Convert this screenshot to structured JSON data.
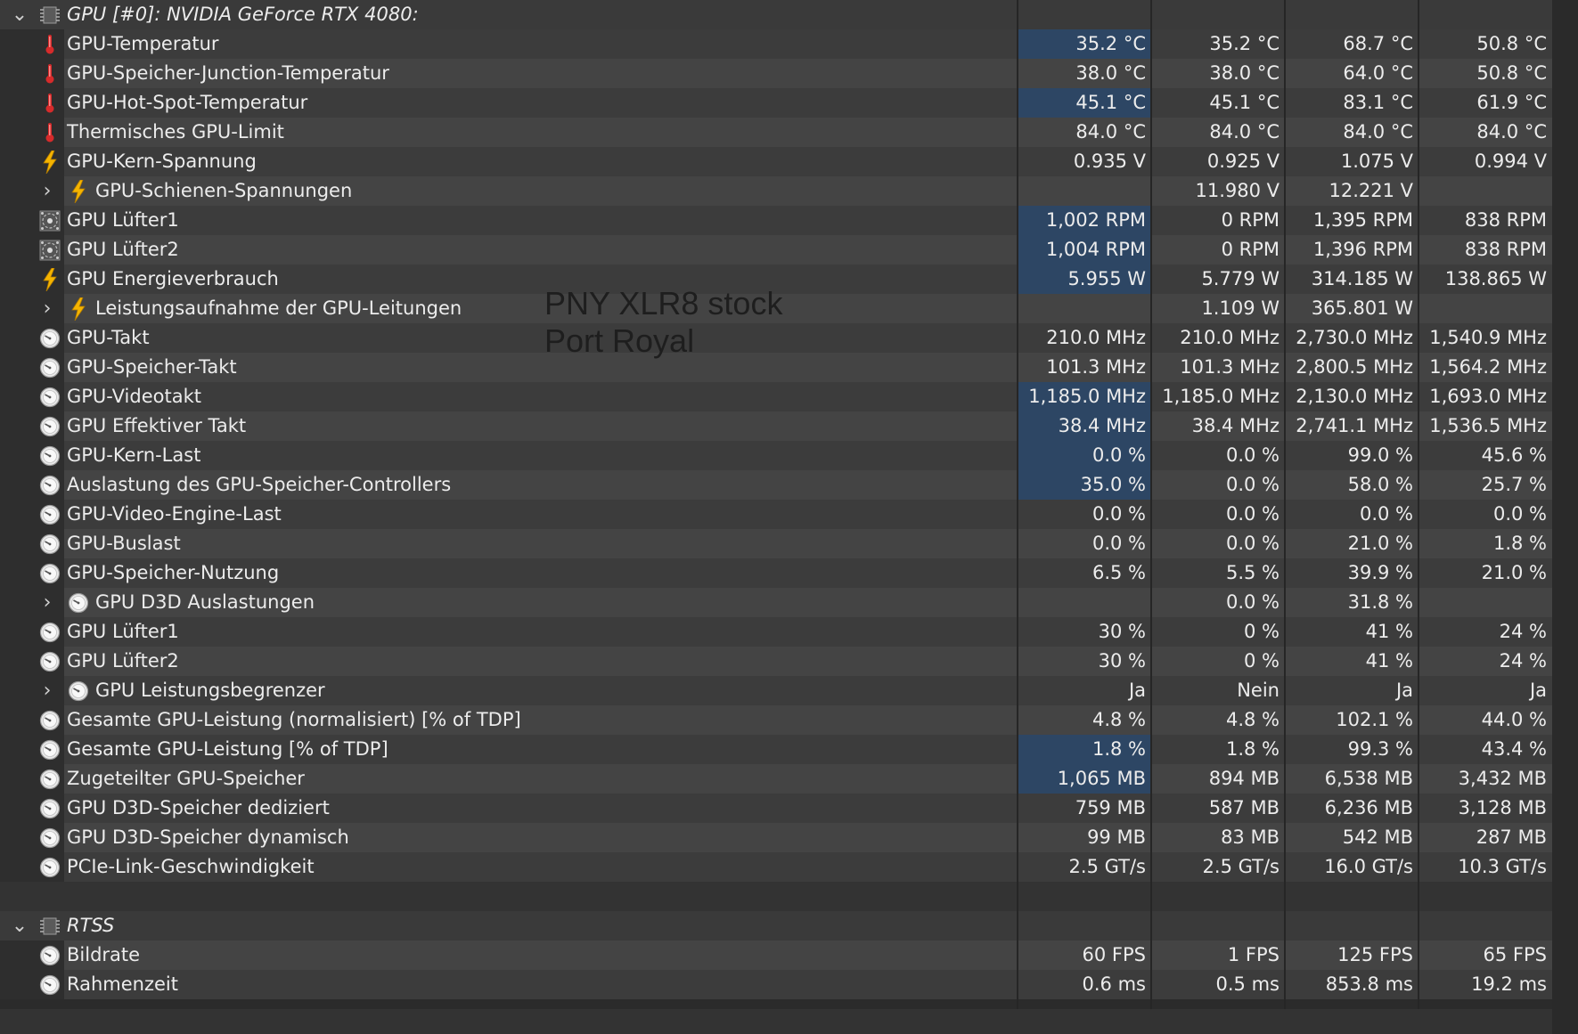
{
  "groups": [
    {
      "title": "GPU [#0]: NVIDIA GeForce RTX 4080:",
      "rows": [
        {
          "label": "GPU-Temperatur",
          "icon": "thermometer-icon",
          "values": [
            "35.2 °C",
            "35.2 °C",
            "68.7 °C",
            "50.8 °C"
          ],
          "highlight": true
        },
        {
          "label": "GPU-Speicher-Junction-Temperatur",
          "icon": "thermometer-icon",
          "values": [
            "38.0 °C",
            "38.0 °C",
            "64.0 °C",
            "50.8 °C"
          ],
          "highlight": false
        },
        {
          "label": "GPU-Hot-Spot-Temperatur",
          "icon": "thermometer-icon",
          "values": [
            "45.1 °C",
            "45.1 °C",
            "83.1 °C",
            "61.9 °C"
          ],
          "highlight": true
        },
        {
          "label": "Thermisches GPU-Limit",
          "icon": "thermometer-icon",
          "values": [
            "84.0 °C",
            "84.0 °C",
            "84.0 °C",
            "84.0 °C"
          ],
          "highlight": false
        },
        {
          "label": "GPU-Kern-Spannung",
          "icon": "lightning-icon",
          "values": [
            "0.935 V",
            "0.925 V",
            "1.075 V",
            "0.994 V"
          ],
          "highlight": false
        },
        {
          "label": "GPU-Schienen-Spannungen",
          "icon": "lightning-icon",
          "expandable": true,
          "values": [
            "",
            "11.980 V",
            "12.221 V",
            ""
          ],
          "highlight": false
        },
        {
          "label": "GPU Lüfter1",
          "icon": "fan-icon",
          "values": [
            "1,002 RPM",
            "0 RPM",
            "1,395 RPM",
            "838 RPM"
          ],
          "highlight": true
        },
        {
          "label": "GPU Lüfter2",
          "icon": "fan-icon",
          "values": [
            "1,004 RPM",
            "0 RPM",
            "1,396 RPM",
            "838 RPM"
          ],
          "highlight": true
        },
        {
          "label": "GPU Energieverbrauch",
          "icon": "lightning-icon",
          "values": [
            "5.955 W",
            "5.779 W",
            "314.185 W",
            "138.865 W"
          ],
          "highlight": true
        },
        {
          "label": "Leistungsaufnahme der GPU-Leitungen",
          "icon": "lightning-icon",
          "expandable": true,
          "values": [
            "",
            "1.109 W",
            "365.801 W",
            ""
          ],
          "highlight": false
        },
        {
          "label": "GPU-Takt",
          "icon": "clock-icon",
          "values": [
            "210.0 MHz",
            "210.0 MHz",
            "2,730.0 MHz",
            "1,540.9 MHz"
          ],
          "highlight": false
        },
        {
          "label": "GPU-Speicher-Takt",
          "icon": "clock-icon",
          "values": [
            "101.3 MHz",
            "101.3 MHz",
            "2,800.5 MHz",
            "1,564.2 MHz"
          ],
          "highlight": false
        },
        {
          "label": "GPU-Videotakt",
          "icon": "clock-icon",
          "values": [
            "1,185.0 MHz",
            "1,185.0 MHz",
            "2,130.0 MHz",
            "1,693.0 MHz"
          ],
          "highlight": true
        },
        {
          "label": "GPU Effektiver Takt",
          "icon": "clock-icon",
          "values": [
            "38.4 MHz",
            "38.4 MHz",
            "2,741.1 MHz",
            "1,536.5 MHz"
          ],
          "highlight": true
        },
        {
          "label": "GPU-Kern-Last",
          "icon": "clock-icon",
          "values": [
            "0.0 %",
            "0.0 %",
            "99.0 %",
            "45.6 %"
          ],
          "highlight": true
        },
        {
          "label": "Auslastung des GPU-Speicher-Controllers",
          "icon": "clock-icon",
          "values": [
            "35.0 %",
            "0.0 %",
            "58.0 %",
            "25.7 %"
          ],
          "highlight": true
        },
        {
          "label": "GPU-Video-Engine-Last",
          "icon": "clock-icon",
          "values": [
            "0.0 %",
            "0.0 %",
            "0.0 %",
            "0.0 %"
          ],
          "highlight": false
        },
        {
          "label": "GPU-Buslast",
          "icon": "clock-icon",
          "values": [
            "0.0 %",
            "0.0 %",
            "21.0 %",
            "1.8 %"
          ],
          "highlight": false
        },
        {
          "label": "GPU-Speicher-Nutzung",
          "icon": "clock-icon",
          "values": [
            "6.5 %",
            "5.5 %",
            "39.9 %",
            "21.0 %"
          ],
          "highlight": false
        },
        {
          "label": "GPU D3D Auslastungen",
          "icon": "clock-icon",
          "expandable": true,
          "values": [
            "",
            "0.0 %",
            "31.8 %",
            ""
          ],
          "highlight": false
        },
        {
          "label": "GPU Lüfter1",
          "icon": "clock-icon",
          "values": [
            "30 %",
            "0 %",
            "41 %",
            "24 %"
          ],
          "highlight": false
        },
        {
          "label": "GPU Lüfter2",
          "icon": "clock-icon",
          "values": [
            "30 %",
            "0 %",
            "41 %",
            "24 %"
          ],
          "highlight": false
        },
        {
          "label": "GPU Leistungsbegrenzer",
          "icon": "clock-icon",
          "expandable": true,
          "values": [
            "Ja",
            "Nein",
            "Ja",
            "Ja"
          ],
          "highlight": false
        },
        {
          "label": "Gesamte GPU-Leistung (normalisiert) [% of TDP]",
          "icon": "clock-icon",
          "values": [
            "4.8 %",
            "4.8 %",
            "102.1 %",
            "44.0 %"
          ],
          "highlight": false
        },
        {
          "label": "Gesamte GPU-Leistung [% of TDP]",
          "icon": "clock-icon",
          "values": [
            "1.8 %",
            "1.8 %",
            "99.3 %",
            "43.4 %"
          ],
          "highlight": true
        },
        {
          "label": "Zugeteilter GPU-Speicher",
          "icon": "clock-icon",
          "values": [
            "1,065 MB",
            "894 MB",
            "6,538 MB",
            "3,432 MB"
          ],
          "highlight": true
        },
        {
          "label": "GPU D3D-Speicher dediziert",
          "icon": "clock-icon",
          "values": [
            "759 MB",
            "587 MB",
            "6,236 MB",
            "3,128 MB"
          ],
          "highlight": false
        },
        {
          "label": "GPU D3D-Speicher dynamisch",
          "icon": "clock-icon",
          "values": [
            "99 MB",
            "83 MB",
            "542 MB",
            "287 MB"
          ],
          "highlight": false
        },
        {
          "label": "PCIe-Link-Geschwindigkeit",
          "icon": "clock-icon",
          "values": [
            "2.5 GT/s",
            "2.5 GT/s",
            "16.0 GT/s",
            "10.3 GT/s"
          ],
          "highlight": false
        }
      ]
    },
    {
      "title": "RTSS",
      "rows": [
        {
          "label": "Bildrate",
          "icon": "clock-icon",
          "values": [
            "60 FPS",
            "1 FPS",
            "125 FPS",
            "65 FPS"
          ],
          "highlight": false
        },
        {
          "label": "Rahmenzeit",
          "icon": "clock-icon",
          "values": [
            "0.6 ms",
            "0.5 ms",
            "853.8 ms",
            "19.2 ms"
          ],
          "highlight": false
        }
      ]
    }
  ],
  "overlay": {
    "line1": "PNY XLR8 stock",
    "line2": "Port Royal"
  },
  "colors": {
    "highlight": "#2d4664",
    "thermometer": "#d62b2b",
    "lightning": "#f5b400"
  }
}
